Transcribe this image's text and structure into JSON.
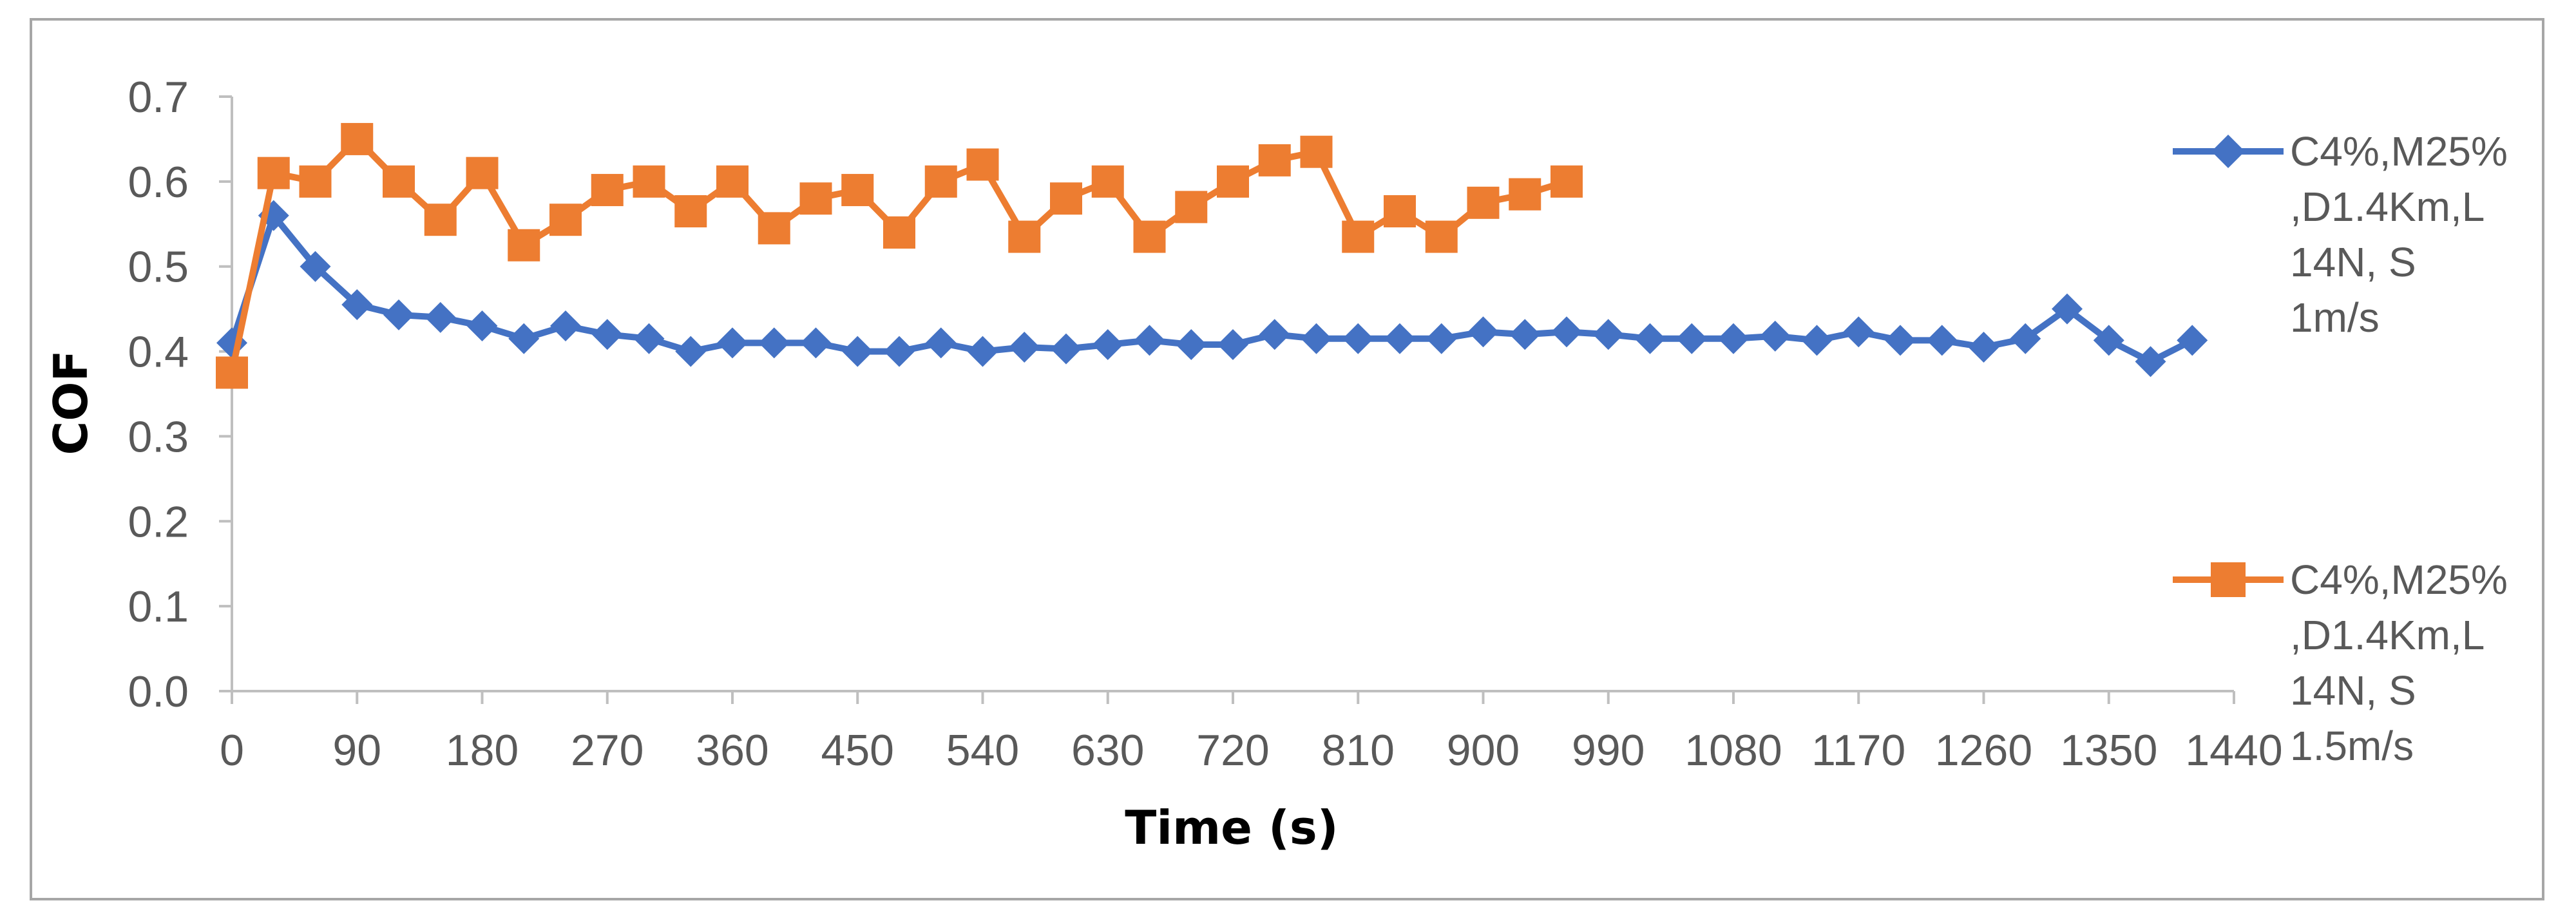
{
  "chart_data": {
    "type": "line",
    "title": "",
    "xlabel": "Time (s)",
    "ylabel": "COF",
    "xlim": [
      0,
      1440
    ],
    "ylim": [
      0.0,
      0.7
    ],
    "x_ticks": [
      "0",
      "90",
      "180",
      "270",
      "360",
      "450",
      "540",
      "630",
      "720",
      "810",
      "900",
      "990",
      "1080",
      "1170",
      "1260",
      "1350",
      "1440"
    ],
    "y_ticks": [
      "0.0",
      "0.1",
      "0.2",
      "0.3",
      "0.4",
      "0.5",
      "0.6",
      "0.7"
    ],
    "grid": false,
    "legend_position": "right",
    "series": [
      {
        "name": "C4%,M25%,D1.4Km,L14N, S 1m/s",
        "legend_lines": [
          "C4%,M25%",
          ",D1.4Km,L",
          "14N, S",
          "1m/s"
        ],
        "color": "#4472c4",
        "marker": "diamond",
        "x": [
          0,
          30,
          60,
          90,
          120,
          150,
          180,
          210,
          240,
          270,
          300,
          330,
          360,
          390,
          420,
          450,
          480,
          510,
          540,
          570,
          600,
          630,
          660,
          690,
          720,
          750,
          780,
          810,
          840,
          870,
          900,
          930,
          960,
          990,
          1020,
          1050,
          1080,
          1110,
          1140,
          1170,
          1200,
          1230,
          1260,
          1290,
          1320,
          1350,
          1380,
          1410
        ],
        "y": [
          0.41,
          0.56,
          0.5,
          0.455,
          0.443,
          0.44,
          0.43,
          0.415,
          0.43,
          0.42,
          0.415,
          0.4,
          0.41,
          0.41,
          0.41,
          0.4,
          0.4,
          0.41,
          0.4,
          0.405,
          0.403,
          0.408,
          0.413,
          0.408,
          0.408,
          0.42,
          0.415,
          0.415,
          0.415,
          0.415,
          0.423,
          0.42,
          0.423,
          0.42,
          0.415,
          0.415,
          0.415,
          0.418,
          0.413,
          0.423,
          0.413,
          0.413,
          0.405,
          0.415,
          0.45,
          0.413,
          0.388,
          0.413
        ]
      },
      {
        "name": "C4%,M25%,D1.4Km,L14N, S 1.5m/s",
        "legend_lines": [
          "C4%,M25%",
          ",D1.4Km,L",
          "14N, S",
          "1.5m/s"
        ],
        "color": "#ed7d31",
        "marker": "square",
        "x": [
          0,
          30,
          60,
          90,
          120,
          150,
          180,
          210,
          240,
          270,
          300,
          330,
          360,
          390,
          420,
          450,
          480,
          510,
          540,
          570,
          600,
          630,
          660,
          690,
          720,
          750,
          780,
          810,
          840,
          870,
          900,
          930,
          960
        ],
        "y": [
          0.375,
          0.61,
          0.6,
          0.65,
          0.6,
          0.555,
          0.61,
          0.525,
          0.555,
          0.59,
          0.6,
          0.565,
          0.6,
          0.545,
          0.58,
          0.59,
          0.54,
          0.6,
          0.62,
          0.535,
          0.58,
          0.6,
          0.535,
          0.57,
          0.6,
          0.625,
          0.635,
          0.535,
          0.565,
          0.535,
          0.575,
          0.585,
          0.6
        ]
      }
    ]
  }
}
